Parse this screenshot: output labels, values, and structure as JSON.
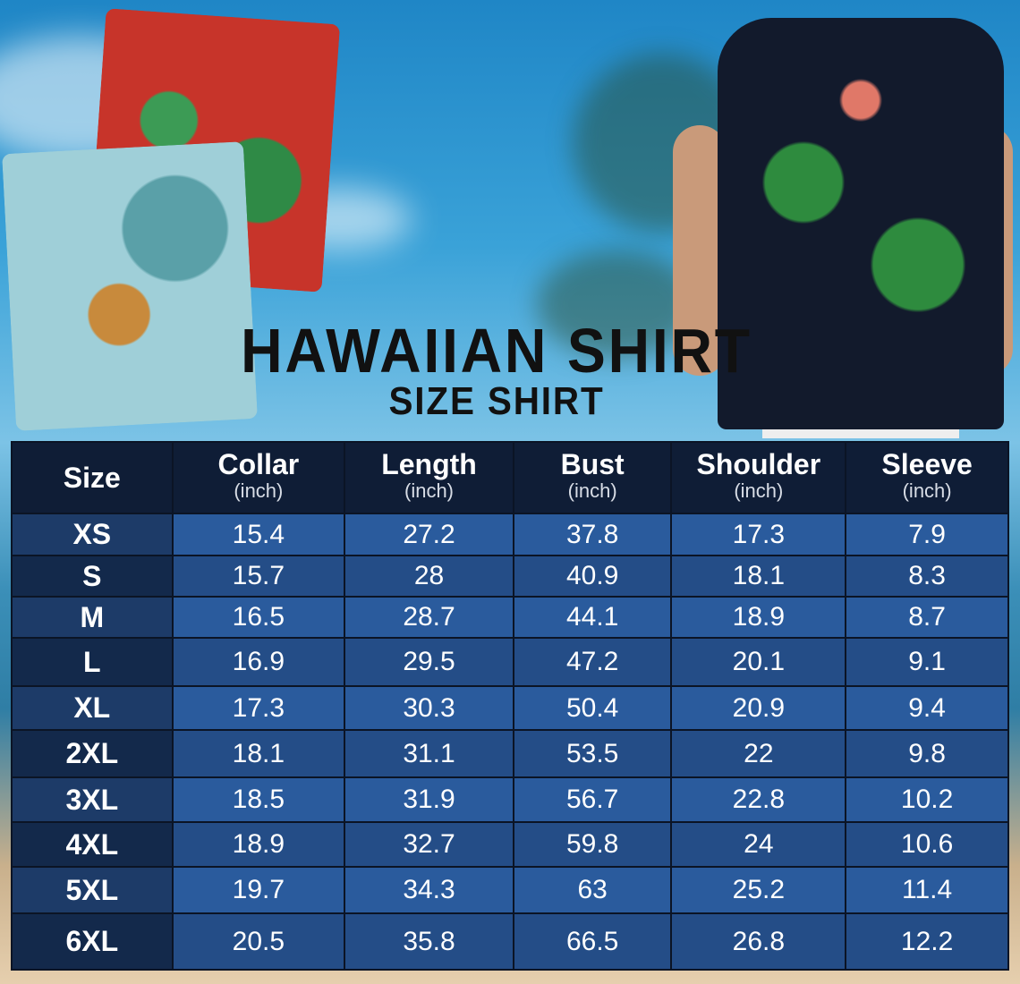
{
  "title": "HAWAIIAN SHIRT",
  "subtitle": "SIZE SHIRT",
  "colors": {
    "header": "#0f1d36",
    "row_light": "#2a5b9d",
    "row_dark": "#244d87",
    "size_col": "#13294b"
  },
  "table": {
    "columns": [
      {
        "label": "Size",
        "unit": ""
      },
      {
        "label": "Collar",
        "unit": "(inch)"
      },
      {
        "label": "Length",
        "unit": "(inch)"
      },
      {
        "label": "Bust",
        "unit": "(inch)"
      },
      {
        "label": "Shoulder",
        "unit": "(inch)"
      },
      {
        "label": "Sleeve",
        "unit": "(inch)"
      }
    ],
    "rows": [
      [
        "XS",
        "15.4",
        "27.2",
        "37.8",
        "17.3",
        "7.9"
      ],
      [
        "S",
        "15.7",
        "28",
        "40.9",
        "18.1",
        "8.3"
      ],
      [
        "M",
        "16.5",
        "28.7",
        "44.1",
        "18.9",
        "8.7"
      ],
      [
        "L",
        "16.9",
        "29.5",
        "47.2",
        "20.1",
        "9.1"
      ],
      [
        "XL",
        "17.3",
        "30.3",
        "50.4",
        "20.9",
        "9.4"
      ],
      [
        "2XL",
        "18.1",
        "31.1",
        "53.5",
        "22",
        "9.8"
      ],
      [
        "3XL",
        "18.5",
        "31.9",
        "56.7",
        "22.8",
        "10.2"
      ],
      [
        "4XL",
        "18.9",
        "32.7",
        "59.8",
        "24",
        "10.6"
      ],
      [
        "5XL",
        "19.7",
        "34.3",
        "63",
        "25.2",
        "11.4"
      ],
      [
        "6XL",
        "20.5",
        "35.8",
        "66.5",
        "26.8",
        "12.2"
      ]
    ]
  }
}
